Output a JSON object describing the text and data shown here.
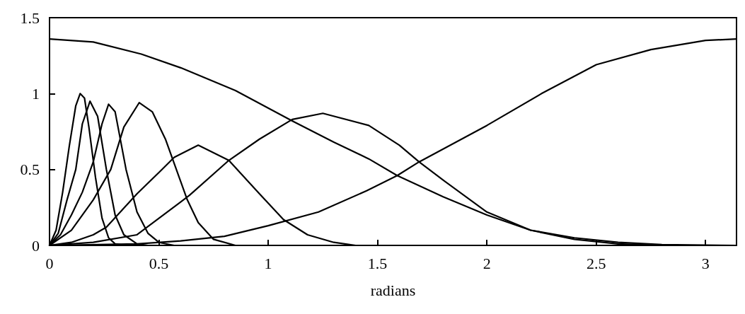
{
  "chart_data": {
    "type": "line",
    "xlabel": "radians",
    "xlim": [
      0,
      3.1416
    ],
    "ylim": [
      0,
      1.5
    ],
    "xticks": [
      0,
      0.5,
      1,
      1.5,
      2,
      2.5,
      3
    ],
    "yticks": [
      0,
      0.5,
      1,
      1.5
    ],
    "grid": false,
    "marker": "none",
    "line_style": "solid",
    "series": [
      {
        "color": "#000000",
        "x": [
          0,
          0.2,
          0.42,
          0.6,
          0.85,
          1.11,
          1.3,
          1.46,
          1.59,
          1.8,
          2.0,
          2.2,
          2.4,
          2.6,
          2.8,
          3.1416
        ],
        "values": [
          1.36,
          1.34,
          1.26,
          1.17,
          1.02,
          0.82,
          0.68,
          0.57,
          0.46,
          0.32,
          0.2,
          0.1,
          0.05,
          0.02,
          0.005,
          0
        ]
      },
      {
        "color": "#000000",
        "x": [
          0,
          0.4,
          0.6,
          0.8,
          1.0,
          1.23,
          1.45,
          1.59,
          1.69,
          2.0,
          2.25,
          2.5,
          2.75,
          3.0,
          3.1416
        ],
        "values": [
          0,
          0.01,
          0.03,
          0.06,
          0.13,
          0.22,
          0.36,
          0.46,
          0.55,
          0.79,
          1.0,
          1.19,
          1.29,
          1.35,
          1.36
        ]
      },
      {
        "color": "#000000",
        "x": [
          0,
          0.03,
          0.06,
          0.09,
          0.12,
          0.14,
          0.16,
          0.18,
          0.21,
          0.24,
          0.27,
          0.3,
          0.35
        ],
        "values": [
          0,
          0.1,
          0.35,
          0.65,
          0.92,
          1.0,
          0.97,
          0.78,
          0.45,
          0.18,
          0.05,
          0.01,
          0
        ]
      },
      {
        "color": "#000000",
        "x": [
          0,
          0.04,
          0.08,
          0.12,
          0.15,
          0.185,
          0.22,
          0.26,
          0.3,
          0.34,
          0.4,
          0.45
        ],
        "values": [
          0,
          0.08,
          0.3,
          0.5,
          0.8,
          0.95,
          0.85,
          0.5,
          0.2,
          0.07,
          0.01,
          0
        ]
      },
      {
        "color": "#000000",
        "x": [
          0,
          0.05,
          0.1,
          0.15,
          0.2,
          0.24,
          0.27,
          0.3,
          0.35,
          0.4,
          0.45,
          0.5,
          0.57
        ],
        "values": [
          0,
          0.07,
          0.2,
          0.35,
          0.55,
          0.8,
          0.93,
          0.88,
          0.5,
          0.22,
          0.08,
          0.02,
          0
        ]
      },
      {
        "color": "#000000",
        "x": [
          0,
          0.1,
          0.2,
          0.28,
          0.34,
          0.41,
          0.47,
          0.53,
          0.58,
          0.63,
          0.68,
          0.75,
          0.85
        ],
        "values": [
          0,
          0.1,
          0.3,
          0.5,
          0.78,
          0.94,
          0.88,
          0.7,
          0.5,
          0.3,
          0.15,
          0.04,
          0
        ]
      },
      {
        "color": "#000000",
        "x": [
          0,
          0.1,
          0.2,
          0.26,
          0.4,
          0.5,
          0.57,
          0.68,
          0.82,
          0.96,
          1.07,
          1.18,
          1.3,
          1.4
        ],
        "values": [
          0,
          0.02,
          0.07,
          0.12,
          0.34,
          0.48,
          0.58,
          0.66,
          0.56,
          0.34,
          0.17,
          0.07,
          0.02,
          0
        ]
      },
      {
        "color": "#000000",
        "x": [
          0,
          0.2,
          0.4,
          0.64,
          0.82,
          0.96,
          1.11,
          1.25,
          1.46,
          1.6,
          1.69,
          1.8,
          2.0,
          2.2,
          2.4,
          2.6,
          2.8
        ],
        "values": [
          0,
          0.02,
          0.07,
          0.33,
          0.56,
          0.7,
          0.83,
          0.87,
          0.79,
          0.66,
          0.55,
          0.43,
          0.22,
          0.1,
          0.04,
          0.01,
          0
        ]
      }
    ]
  }
}
